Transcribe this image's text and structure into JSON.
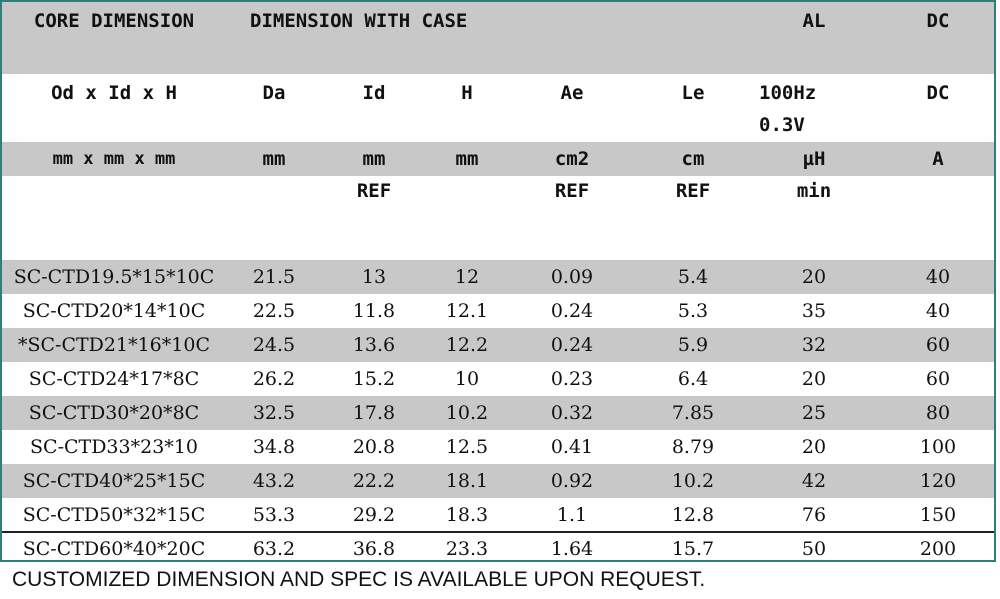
{
  "header": {
    "title_row": [
      "CORE DIMENSION",
      "DIMENSION WITH CASE",
      "",
      "",
      "",
      "",
      "AL",
      "DC"
    ],
    "param_row": [
      "Od x Id x H",
      "Da",
      "Id",
      "H",
      "Ae",
      "Le",
      [
        "100Hz",
        "0.3V"
      ],
      "DC"
    ],
    "unit_row": [
      "mm x mm x mm",
      "mm",
      "mm",
      "mm",
      "cm2",
      "cm",
      "µH",
      "A"
    ],
    "note_row": [
      "",
      "",
      "REF",
      "",
      "REF",
      "REF",
      "min",
      ""
    ]
  },
  "rows": [
    [
      "SC-CTD19.5*15*10C",
      "21.5",
      "13",
      "12",
      "0.09",
      "5.4",
      "20",
      "40"
    ],
    [
      "SC-CTD20*14*10C",
      "22.5",
      "11.8",
      "12.1",
      "0.24",
      "5.3",
      "35",
      "40"
    ],
    [
      "*SC-CTD21*16*10C",
      "24.5",
      "13.6",
      "12.2",
      "0.24",
      "5.9",
      "32",
      "60"
    ],
    [
      "SC-CTD24*17*8C",
      "26.2",
      "15.2",
      "10",
      "0.23",
      "6.4",
      "20",
      "60"
    ],
    [
      "SC-CTD30*20*8C",
      "32.5",
      "17.8",
      "10.2",
      "0.32",
      "7.85",
      "25",
      "80"
    ],
    [
      "SC-CTD33*23*10",
      "34.8",
      "20.8",
      "12.5",
      "0.41",
      "8.79",
      "20",
      "100"
    ],
    [
      "SC-CTD40*25*15C",
      "43.2",
      "22.2",
      "18.1",
      "0.92",
      "10.2",
      "42",
      "120"
    ],
    [
      "SC-CTD50*32*15C",
      "53.3",
      "29.2",
      "18.3",
      "1.1",
      "12.8",
      "76",
      "150"
    ],
    [
      "SC-CTD60*40*20C",
      "63.2",
      "36.8",
      "23.3",
      "1.64",
      "15.7",
      "50",
      "200"
    ]
  ],
  "footer": "CUSTOMIZED DIMENSION AND SPEC IS AVAILABLE UPON REQUEST.",
  "colors": {
    "border": "#2e7f7a",
    "stripe": "#c8c8c8"
  }
}
